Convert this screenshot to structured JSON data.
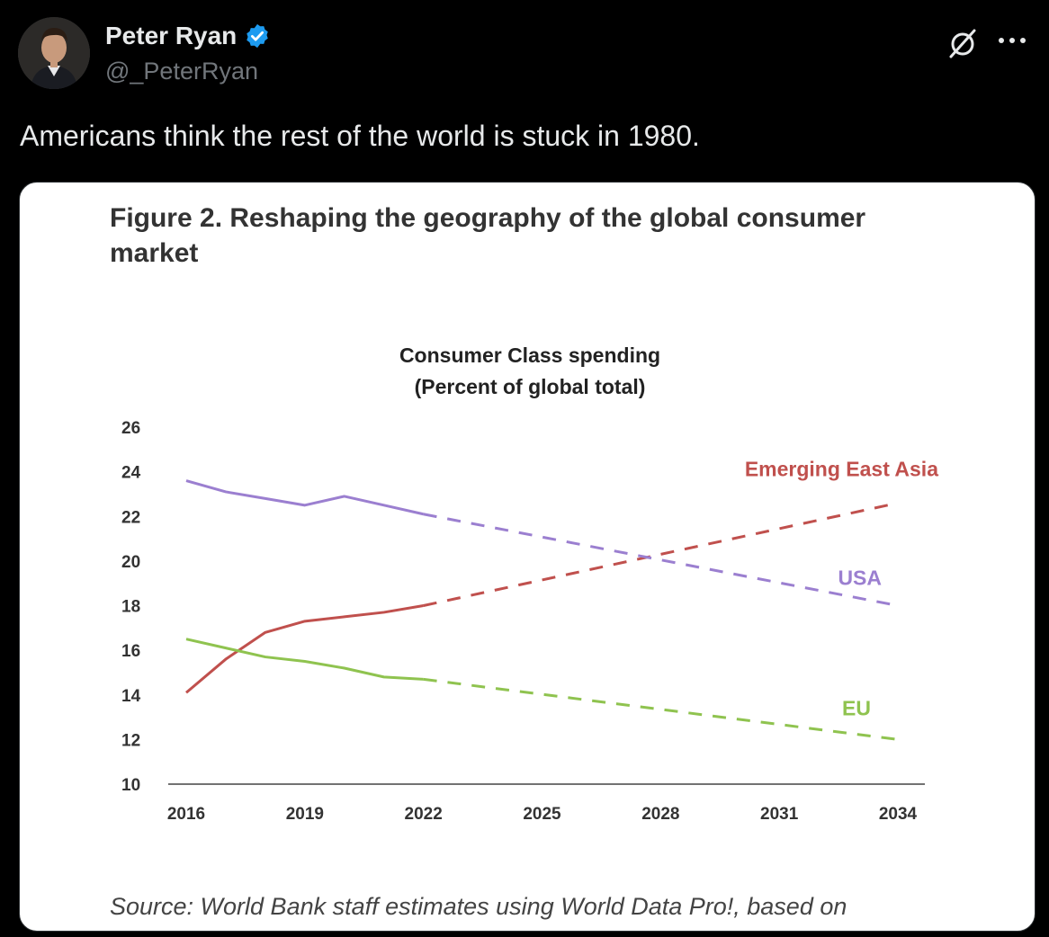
{
  "author": {
    "display_name": "Peter Ryan",
    "handle": "@_PeterRyan",
    "verified": true
  },
  "icons": {
    "verified": "verified-badge-icon",
    "grok": "grok-icon",
    "more": "more-icon"
  },
  "tweet": {
    "text": "Americans think the rest of the world is stuck in 1980."
  },
  "figure": {
    "title": "Figure 2. Reshaping the geography of the global consumer market",
    "source": "Source: World Bank staff estimates using World Data Pro!, based on"
  },
  "colors": {
    "background": "#000000",
    "accent_blue": "#1d9bf0",
    "usa": "#9b7fd0",
    "asia": "#c0504d",
    "eu": "#8fc34f"
  },
  "chart_data": {
    "type": "line",
    "title": "Consumer Class spending",
    "subtitle": "(Percent of global total)",
    "x_ticks": [
      2016,
      2019,
      2022,
      2025,
      2028,
      2031,
      2034
    ],
    "y_ticks": [
      10,
      12,
      14,
      16,
      18,
      20,
      22,
      24,
      26
    ],
    "xlim": [
      2016,
      2034
    ],
    "ylim": [
      10,
      26
    ],
    "grid": false,
    "series": [
      {
        "name": "Emerging East Asia",
        "color": "#c0504d",
        "actual": [
          [
            2016,
            14.1
          ],
          [
            2017,
            15.6
          ],
          [
            2018,
            16.8
          ],
          [
            2019,
            17.3
          ],
          [
            2020,
            17.5
          ],
          [
            2021,
            17.7
          ],
          [
            2022,
            18.0
          ]
        ],
        "projected": [
          [
            2022,
            18.0
          ],
          [
            2034,
            22.6
          ]
        ]
      },
      {
        "name": "USA",
        "color": "#9b7fd0",
        "actual": [
          [
            2016,
            23.6
          ],
          [
            2017,
            23.1
          ],
          [
            2018,
            22.8
          ],
          [
            2019,
            22.5
          ],
          [
            2020,
            22.9
          ],
          [
            2021,
            22.5
          ],
          [
            2022,
            22.1
          ]
        ],
        "projected": [
          [
            2022,
            22.1
          ],
          [
            2034,
            18.0
          ]
        ]
      },
      {
        "name": "EU",
        "color": "#8fc34f",
        "actual": [
          [
            2016,
            16.5
          ],
          [
            2017,
            16.1
          ],
          [
            2018,
            15.7
          ],
          [
            2019,
            15.5
          ],
          [
            2020,
            15.2
          ],
          [
            2021,
            14.8
          ],
          [
            2022,
            14.7
          ]
        ],
        "projected": [
          [
            2022,
            14.7
          ],
          [
            2034,
            12.0
          ]
        ]
      }
    ]
  }
}
